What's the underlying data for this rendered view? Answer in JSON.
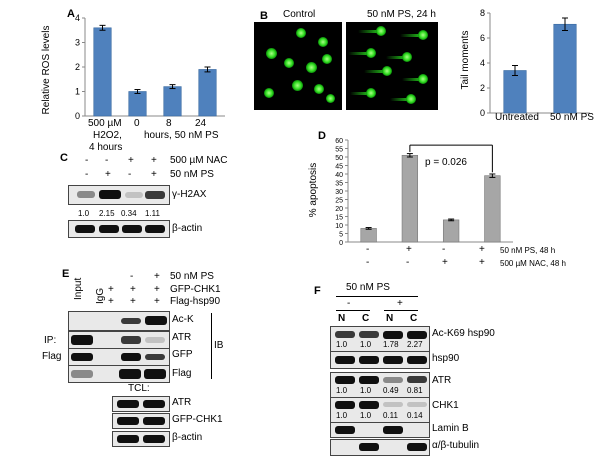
{
  "panels": {
    "A": {
      "letter": "A",
      "ylabel": "Relative ROS levels",
      "yticks": [
        "0",
        "1",
        "2",
        "3",
        "4"
      ],
      "cat_labels": [
        "500 µM",
        "0",
        "8",
        "24"
      ],
      "sub1": "H2O2,",
      "sub1b": "hours, 50 nM PS",
      "sub2": "4 hours"
    },
    "B": {
      "letter": "B",
      "control_label": "Control",
      "treated_label": "50 nM PS, 24 h",
      "ylabel": "Tail moments",
      "yticks": [
        "0",
        "2",
        "4",
        "6",
        "8"
      ],
      "cat_labels": [
        "Untreated",
        "50 nM PS"
      ]
    },
    "C": {
      "letter": "C",
      "row1_label": "500 µM NAC",
      "row2_label": "50 nM PS",
      "row1_signs": [
        "-",
        "-",
        "+",
        "+"
      ],
      "row2_signs": [
        "-",
        "+",
        "-",
        "+"
      ],
      "blot1_label": "γ-H2AX",
      "blot2_label": "β-actin",
      "quant": [
        "1.0",
        "2.15",
        "0.34",
        "1.11"
      ]
    },
    "D": {
      "letter": "D",
      "ylabel": "% apoptosis",
      "yticks": [
        "0",
        "5",
        "10",
        "15",
        "20",
        "25",
        "30",
        "35",
        "40",
        "45",
        "50",
        "55",
        "60"
      ],
      "pvalue": "p = 0.026",
      "row1_signs": [
        "-",
        "+",
        "-",
        "+"
      ],
      "row2_signs": [
        "-",
        "-",
        "+",
        "+"
      ],
      "row1_label": "50 nM PS, 48 h",
      "row2_label": "500 µM NAC, 48 h"
    },
    "E": {
      "letter": "E",
      "col_input": "Input",
      "col_igg": "IgG",
      "row1_label": "50 nM PS",
      "row2_label": "GFP-CHK1",
      "row3_label": "Flag-hsp90",
      "row1_signs": [
        "-",
        "+"
      ],
      "row2_signs": [
        "+",
        "+",
        "+"
      ],
      "row3_signs": [
        "+",
        "+",
        "+"
      ],
      "ip_label": "IP:",
      "flag_label": "Flag",
      "ib_label": "IB",
      "blot_labels": [
        "Ac-K",
        "ATR",
        "GFP",
        "Flag"
      ],
      "tcl_label": "TCL:",
      "tcl_blot_labels": [
        "ATR",
        "GFP-CHK1",
        "β-actin"
      ]
    },
    "F": {
      "letter": "F",
      "ps_label": "50 nM PS",
      "signs": [
        "-",
        "+"
      ],
      "cols": [
        "N",
        "C",
        "N",
        "C"
      ],
      "blot_labels": [
        "Ac-K69 hsp90",
        "hsp90",
        "ATR",
        "CHK1",
        "Lamin B",
        "α/β-tubulin"
      ],
      "quant_ack": [
        "1.0",
        "1.0",
        "1.78",
        "2.27"
      ],
      "quant_atr": [
        "1.0",
        "1.0",
        "0.49",
        "0.81"
      ],
      "quant_chk1": [
        "1.0",
        "1.0",
        "0.11",
        "0.14"
      ]
    }
  },
  "chart_data": [
    {
      "type": "bar",
      "panel": "A",
      "categories": [
        "500 µM H2O2, 4 hours",
        "0",
        "8",
        "24"
      ],
      "values": [
        3.6,
        1.0,
        1.2,
        1.9
      ],
      "errors": [
        0.1,
        0.08,
        0.08,
        0.1
      ],
      "ylabel": "Relative ROS levels",
      "ylim": [
        0,
        4
      ],
      "color": "#4f81bd"
    },
    {
      "type": "bar",
      "panel": "B",
      "categories": [
        "Untreated",
        "50 nM PS"
      ],
      "values": [
        3.4,
        7.1
      ],
      "errors": [
        0.4,
        0.5
      ],
      "ylabel": "Tail moments",
      "ylim": [
        0,
        8
      ],
      "color": "#4f81bd"
    },
    {
      "type": "bar",
      "panel": "D",
      "categories": [
        "-/-",
        "+/-",
        "-/+",
        "+/+"
      ],
      "values": [
        8,
        51,
        13,
        39
      ],
      "errors": [
        0.5,
        1,
        0.5,
        1
      ],
      "ylabel": "% apoptosis",
      "ylim": [
        0,
        60
      ],
      "color": "#a6a6a6"
    }
  ]
}
